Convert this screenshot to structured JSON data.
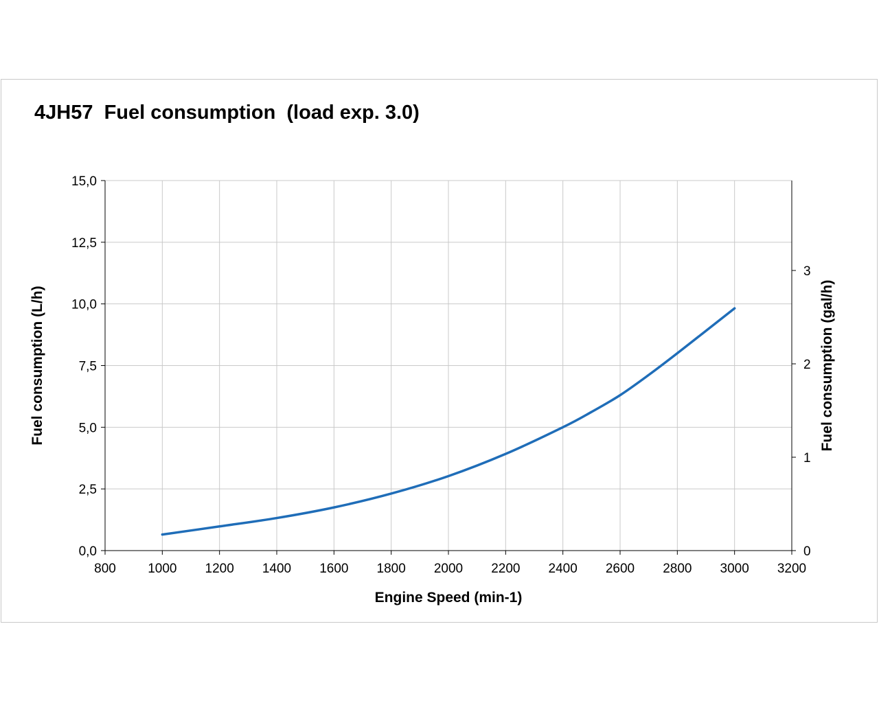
{
  "chart_data": {
    "type": "line",
    "title": "4JH57  Fuel consumption  (load exp. 3.0)",
    "xlabel": "Engine Speed (min-1)",
    "ylabel": "Fuel consumption (L/h)",
    "y2label": "Fuel consumption (gal/h)",
    "xlim": [
      800,
      3200
    ],
    "ylim": [
      0,
      15
    ],
    "y2lim": [
      0,
      3.963
    ],
    "x_ticks": [
      "800",
      "1000",
      "1200",
      "1400",
      "1600",
      "1800",
      "2000",
      "2200",
      "2400",
      "2600",
      "2800",
      "3000",
      "3200"
    ],
    "y_ticks": [
      "0,0",
      "2,5",
      "5,0",
      "7,5",
      "10,0",
      "12,5",
      "15,0"
    ],
    "y2_ticks": [
      "0",
      "1",
      "2",
      "3"
    ],
    "grid": true,
    "series": [
      {
        "color": "#1f6db8",
        "x": [
          1000,
          1200,
          1400,
          1600,
          1800,
          2000,
          2200,
          2400,
          2500,
          2600,
          2700,
          2800,
          3000
        ],
        "y": [
          0.65,
          0.98,
          1.32,
          1.75,
          2.31,
          3.02,
          3.92,
          5.0,
          5.62,
          6.3,
          7.12,
          8.0,
          9.82
        ]
      }
    ]
  }
}
